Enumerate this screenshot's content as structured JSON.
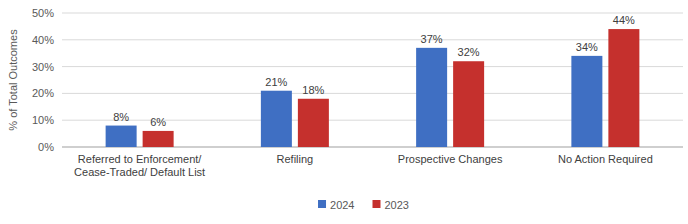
{
  "chart_data": {
    "type": "bar",
    "y_label": "% of Total Outcomes",
    "categories": [
      "Referred to Enforcement/ Cease-Traded/ Default List",
      "Refiling",
      "Prospective Changes",
      "No Action Required"
    ],
    "series": [
      {
        "name": "2024",
        "color": "#3f6fc3",
        "values": [
          8,
          21,
          37,
          34
        ],
        "value_labels": [
          "8%",
          "21%",
          "37%",
          "34%"
        ]
      },
      {
        "name": "2023",
        "color": "#c5302d",
        "values": [
          6,
          18,
          32,
          44
        ],
        "value_labels": [
          "6%",
          "18%",
          "32%",
          "44%"
        ]
      }
    ],
    "ylim": [
      0,
      50
    ],
    "yticks": [
      {
        "value": 0,
        "label": "0%"
      },
      {
        "value": 10,
        "label": "10%"
      },
      {
        "value": 20,
        "label": "20%"
      },
      {
        "value": 30,
        "label": "30%"
      },
      {
        "value": 40,
        "label": "40%"
      },
      {
        "value": 50,
        "label": "50%"
      }
    ],
    "grid": true,
    "legend": "bottom",
    "data_labels": true
  }
}
